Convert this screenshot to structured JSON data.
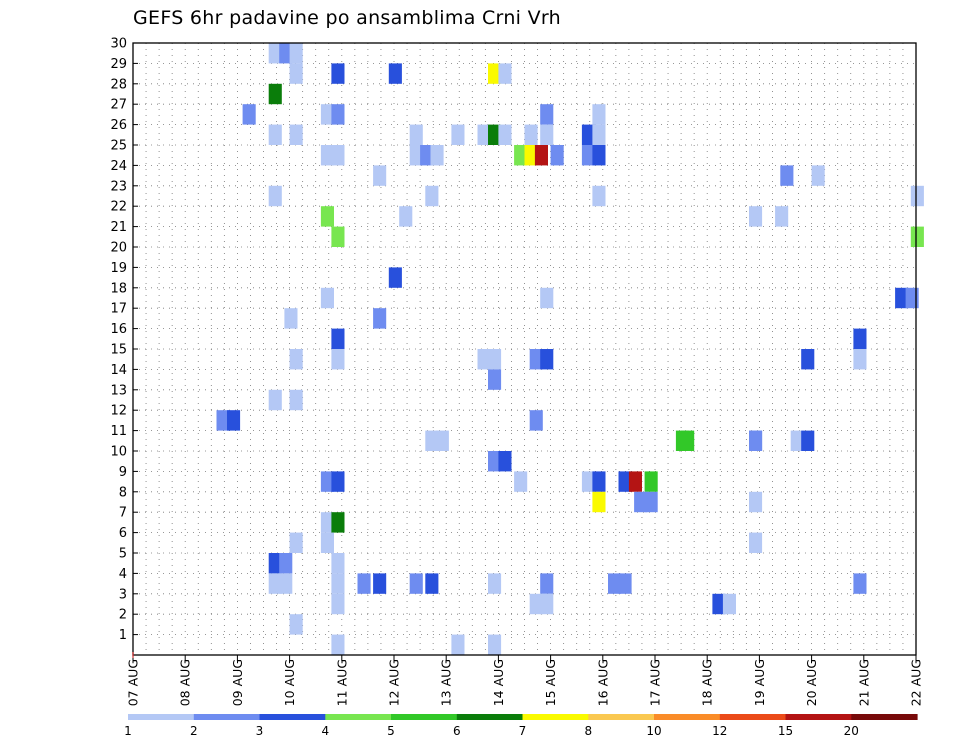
{
  "chart_data": {
    "type": "heatmap",
    "title": "GEFS 6hr padavine po ansamblima Crni Vrh",
    "x_tick_labels": [
      "07 AUG",
      "08 AUG",
      "09 AUG",
      "10 AUG",
      "11 AUG",
      "12 AUG",
      "13 AUG",
      "14 AUG",
      "15 AUG",
      "16 AUG",
      "17 AUG",
      "18 AUG",
      "19 AUG",
      "20 AUG",
      "21 AUG",
      "22 AUG"
    ],
    "y_tick_labels": [
      "1",
      "2",
      "3",
      "4",
      "5",
      "6",
      "7",
      "8",
      "9",
      "10",
      "11",
      "12",
      "13",
      "14",
      "15",
      "16",
      "17",
      "18",
      "19",
      "20",
      "21",
      "22",
      "23",
      "24",
      "25",
      "26",
      "27",
      "28",
      "29",
      "30"
    ],
    "xlim_days": [
      0,
      15
    ],
    "ylim": [
      0,
      30
    ],
    "grid": true,
    "colorbar": {
      "levels": [
        "1",
        "2",
        "3",
        "4",
        "5",
        "6",
        "7",
        "8",
        "10",
        "12",
        "15",
        "20"
      ],
      "colors": [
        "#b4c8f5",
        "#6e8cf0",
        "#2850dc",
        "#78e650",
        "#32c828",
        "#0a7d0a",
        "#fafa00",
        "#fac850",
        "#fa8c28",
        "#eb4b19",
        "#b41414",
        "#780a0a"
      ]
    },
    "cells_note": "x = forecast day offset from 07 AUG (cell start), y = ensemble member, v = color class index",
    "cells": [
      {
        "x": 2.6,
        "y": 30,
        "v": 0
      },
      {
        "x": 2.8,
        "y": 30,
        "v": 1
      },
      {
        "x": 3.0,
        "y": 30,
        "v": 0
      },
      {
        "x": 3.0,
        "y": 29,
        "v": 0
      },
      {
        "x": 3.8,
        "y": 29,
        "v": 2
      },
      {
        "x": 4.9,
        "y": 29,
        "v": 2
      },
      {
        "x": 6.8,
        "y": 29,
        "v": 6
      },
      {
        "x": 7.0,
        "y": 29,
        "v": 0
      },
      {
        "x": 2.6,
        "y": 28,
        "v": 5
      },
      {
        "x": 2.1,
        "y": 27,
        "v": 1
      },
      {
        "x": 3.6,
        "y": 27,
        "v": 0
      },
      {
        "x": 3.8,
        "y": 27,
        "v": 1
      },
      {
        "x": 7.8,
        "y": 27,
        "v": 1
      },
      {
        "x": 8.8,
        "y": 27,
        "v": 0
      },
      {
        "x": 2.6,
        "y": 26,
        "v": 0
      },
      {
        "x": 3.0,
        "y": 26,
        "v": 0
      },
      {
        "x": 5.3,
        "y": 26,
        "v": 0
      },
      {
        "x": 6.1,
        "y": 26,
        "v": 0
      },
      {
        "x": 6.6,
        "y": 26,
        "v": 0
      },
      {
        "x": 6.8,
        "y": 26,
        "v": 5
      },
      {
        "x": 7.0,
        "y": 26,
        "v": 0
      },
      {
        "x": 7.5,
        "y": 26,
        "v": 0
      },
      {
        "x": 7.8,
        "y": 26,
        "v": 0
      },
      {
        "x": 8.6,
        "y": 26,
        "v": 2
      },
      {
        "x": 8.8,
        "y": 26,
        "v": 0
      },
      {
        "x": 3.6,
        "y": 25,
        "v": 0
      },
      {
        "x": 3.8,
        "y": 25,
        "v": 0
      },
      {
        "x": 5.3,
        "y": 25,
        "v": 0
      },
      {
        "x": 5.5,
        "y": 25,
        "v": 1
      },
      {
        "x": 5.7,
        "y": 25,
        "v": 0
      },
      {
        "x": 7.3,
        "y": 25,
        "v": 3
      },
      {
        "x": 7.5,
        "y": 25,
        "v": 6
      },
      {
        "x": 7.7,
        "y": 25,
        "v": 10
      },
      {
        "x": 8.0,
        "y": 25,
        "v": 1
      },
      {
        "x": 8.6,
        "y": 25,
        "v": 1
      },
      {
        "x": 8.8,
        "y": 25,
        "v": 2
      },
      {
        "x": 4.6,
        "y": 24,
        "v": 0
      },
      {
        "x": 12.4,
        "y": 24,
        "v": 1
      },
      {
        "x": 13.0,
        "y": 24,
        "v": 0
      },
      {
        "x": 2.6,
        "y": 23,
        "v": 0
      },
      {
        "x": 5.6,
        "y": 23,
        "v": 0
      },
      {
        "x": 8.8,
        "y": 23,
        "v": 0
      },
      {
        "x": 14.9,
        "y": 23,
        "v": 0
      },
      {
        "x": 3.6,
        "y": 22,
        "v": 3
      },
      {
        "x": 5.1,
        "y": 22,
        "v": 0
      },
      {
        "x": 11.8,
        "y": 22,
        "v": 0
      },
      {
        "x": 12.3,
        "y": 22,
        "v": 0
      },
      {
        "x": 3.8,
        "y": 21,
        "v": 3
      },
      {
        "x": 14.9,
        "y": 21,
        "v": 3
      },
      {
        "x": 4.9,
        "y": 19,
        "v": 2
      },
      {
        "x": 3.6,
        "y": 18,
        "v": 0
      },
      {
        "x": 7.8,
        "y": 18,
        "v": 0
      },
      {
        "x": 14.6,
        "y": 18,
        "v": 2
      },
      {
        "x": 14.8,
        "y": 18,
        "v": 1
      },
      {
        "x": 2.9,
        "y": 17,
        "v": 0
      },
      {
        "x": 4.6,
        "y": 17,
        "v": 1
      },
      {
        "x": 3.8,
        "y": 16,
        "v": 2
      },
      {
        "x": 13.8,
        "y": 16,
        "v": 2
      },
      {
        "x": 3.0,
        "y": 15,
        "v": 0
      },
      {
        "x": 3.8,
        "y": 15,
        "v": 0
      },
      {
        "x": 6.6,
        "y": 15,
        "v": 0
      },
      {
        "x": 6.8,
        "y": 15,
        "v": 0
      },
      {
        "x": 7.6,
        "y": 15,
        "v": 1
      },
      {
        "x": 7.8,
        "y": 15,
        "v": 2
      },
      {
        "x": 12.8,
        "y": 15,
        "v": 2
      },
      {
        "x": 13.8,
        "y": 15,
        "v": 0
      },
      {
        "x": 6.8,
        "y": 14,
        "v": 1
      },
      {
        "x": 2.6,
        "y": 13,
        "v": 0
      },
      {
        "x": 3.0,
        "y": 13,
        "v": 0
      },
      {
        "x": 1.6,
        "y": 12,
        "v": 1
      },
      {
        "x": 1.8,
        "y": 12,
        "v": 2
      },
      {
        "x": 7.6,
        "y": 12,
        "v": 1
      },
      {
        "x": 5.6,
        "y": 11,
        "v": 0
      },
      {
        "x": 5.8,
        "y": 11,
        "v": 0
      },
      {
        "x": 11.8,
        "y": 11,
        "v": 1
      },
      {
        "x": 11.8,
        "y": 11,
        "v": 1
      },
      {
        "x": 10.5,
        "y": 11,
        "v": 4
      },
      {
        "x": 10.4,
        "y": 11,
        "v": 4
      },
      {
        "x": 12.6,
        "y": 11,
        "v": 0
      },
      {
        "x": 12.8,
        "y": 11,
        "v": 2
      },
      {
        "x": 6.8,
        "y": 10,
        "v": 1
      },
      {
        "x": 7.0,
        "y": 10,
        "v": 2
      },
      {
        "x": 3.6,
        "y": 9,
        "v": 1
      },
      {
        "x": 3.8,
        "y": 9,
        "v": 2
      },
      {
        "x": 7.3,
        "y": 9,
        "v": 0
      },
      {
        "x": 8.6,
        "y": 9,
        "v": 0
      },
      {
        "x": 8.8,
        "y": 9,
        "v": 2
      },
      {
        "x": 9.3,
        "y": 9,
        "v": 2
      },
      {
        "x": 9.5,
        "y": 9,
        "v": 10
      },
      {
        "x": 9.8,
        "y": 9,
        "v": 4
      },
      {
        "x": 8.8,
        "y": 8,
        "v": 6
      },
      {
        "x": 9.6,
        "y": 8,
        "v": 1
      },
      {
        "x": 9.8,
        "y": 8,
        "v": 1
      },
      {
        "x": 11.8,
        "y": 8,
        "v": 0
      },
      {
        "x": 3.6,
        "y": 7,
        "v": 0
      },
      {
        "x": 3.8,
        "y": 7,
        "v": 5
      },
      {
        "x": 3.0,
        "y": 6,
        "v": 0
      },
      {
        "x": 3.6,
        "y": 6,
        "v": 0
      },
      {
        "x": 11.8,
        "y": 6,
        "v": 0
      },
      {
        "x": 2.6,
        "y": 5,
        "v": 2
      },
      {
        "x": 2.8,
        "y": 5,
        "v": 1
      },
      {
        "x": 3.8,
        "y": 5,
        "v": 0
      },
      {
        "x": 2.6,
        "y": 4,
        "v": 0
      },
      {
        "x": 2.8,
        "y": 4,
        "v": 0
      },
      {
        "x": 3.8,
        "y": 4,
        "v": 0
      },
      {
        "x": 4.3,
        "y": 4,
        "v": 1
      },
      {
        "x": 4.6,
        "y": 4,
        "v": 2
      },
      {
        "x": 5.3,
        "y": 4,
        "v": 1
      },
      {
        "x": 5.6,
        "y": 4,
        "v": 2
      },
      {
        "x": 6.8,
        "y": 4,
        "v": 0
      },
      {
        "x": 7.8,
        "y": 4,
        "v": 1
      },
      {
        "x": 9.1,
        "y": 4,
        "v": 1
      },
      {
        "x": 9.3,
        "y": 4,
        "v": 1
      },
      {
        "x": 13.8,
        "y": 4,
        "v": 1
      },
      {
        "x": 3.8,
        "y": 3,
        "v": 0
      },
      {
        "x": 7.6,
        "y": 3,
        "v": 0
      },
      {
        "x": 7.8,
        "y": 3,
        "v": 0
      },
      {
        "x": 11.1,
        "y": 3,
        "v": 2
      },
      {
        "x": 11.3,
        "y": 3,
        "v": 0
      },
      {
        "x": 3.0,
        "y": 2,
        "v": 0
      },
      {
        "x": 3.8,
        "y": 1,
        "v": 0
      },
      {
        "x": 6.1,
        "y": 1,
        "v": 0
      },
      {
        "x": 6.8,
        "y": 1,
        "v": 0
      }
    ]
  }
}
